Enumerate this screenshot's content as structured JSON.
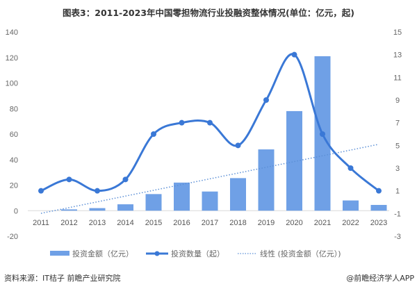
{
  "title": "图表3：2011-2023年中国零担物流行业投融资整体情况(单位：亿元，起)",
  "footer": {
    "source": "资料来源：IT桔子 前瞻产业研究院",
    "credit": "@前瞻经济学人APP"
  },
  "colors": {
    "bar": "#6fa0e6",
    "line": "#3a78d6",
    "trend": "#5b8fd6"
  },
  "legend": [
    {
      "label": "投资金额（亿元）",
      "type": "bar"
    },
    {
      "label": "投资数量（起）",
      "type": "line"
    },
    {
      "label": "线性 (投资金额（亿元）)",
      "type": "trend"
    }
  ],
  "chart_data": {
    "type": "bar",
    "title": "图表3：2011-2023年中国零担物流行业投融资整体情况(单位：亿元，起)",
    "categories": [
      "2011",
      "2012",
      "2013",
      "2014",
      "2015",
      "2016",
      "2017",
      "2018",
      "2019",
      "2020",
      "2021",
      "2022",
      "2023"
    ],
    "series": [
      {
        "name": "投资金额（亿元）",
        "type": "bar",
        "axis": "left",
        "values": [
          0,
          1,
          2,
          5,
          13,
          22,
          15,
          25.5,
          48,
          78,
          121,
          8,
          4.5
        ]
      },
      {
        "name": "投资数量（起）",
        "type": "line",
        "axis": "right",
        "values": [
          1,
          2,
          1,
          2,
          6,
          7,
          7,
          5,
          9,
          13,
          6,
          3,
          1
        ]
      },
      {
        "name": "线性 (投资金额（亿元）)",
        "type": "trendline",
        "axis": "left",
        "values": [
          -1,
          52
        ]
      }
    ],
    "left_axis": {
      "ylim": [
        -20,
        140
      ],
      "ticks": [
        -20,
        0,
        20,
        40,
        60,
        80,
        100,
        120,
        140
      ]
    },
    "right_axis": {
      "ylim": [
        -3,
        15
      ],
      "ticks": [
        -3,
        -1,
        1,
        3,
        5,
        7,
        9,
        11,
        13,
        15
      ]
    },
    "xlabel": "",
    "ylabel": "",
    "grid": false,
    "legend_position": "bottom"
  }
}
